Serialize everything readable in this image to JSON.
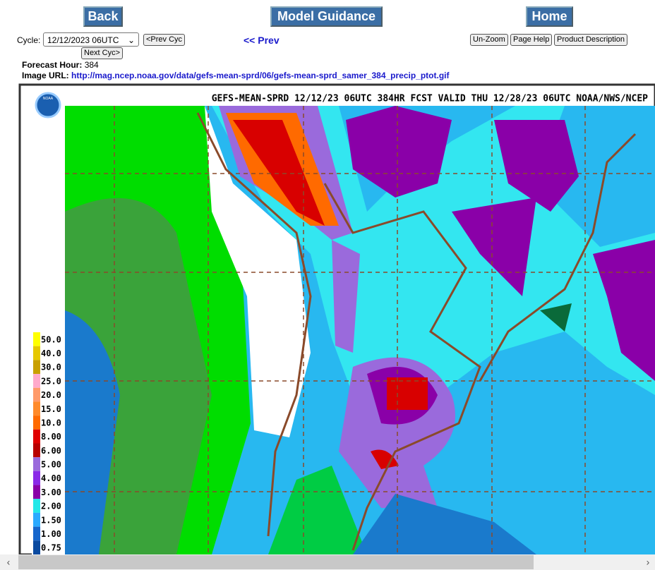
{
  "nav": {
    "back": "Back",
    "title": "Model Guidance",
    "home": "Home"
  },
  "cycle": {
    "label": "Cycle:",
    "selected": "12/12/2023 06UTC",
    "prev": "<Prev Cyc",
    "next": "Next Cyc>"
  },
  "prev_link": "<< Prev",
  "tools": {
    "unzoom": "Un-Zoom",
    "help": "Page Help",
    "description": "Product Description"
  },
  "info": {
    "hour_label": "Forecast Hour:",
    "hour": "384",
    "url_label": "Image URL:",
    "url": "http://mag.ncep.noaa.gov/data/gefs-mean-sprd/06/gefs-mean-sprd_samer_384_precip_ptot.gif"
  },
  "map": {
    "title": "GEFS-MEAN-SPRD 12/12/23 06UTC 384HR FCST VALID THU 12/28/23 06UTC NOAA/NWS/NCEP",
    "logo": "NOAA",
    "legend": [
      {
        "label": "50.0",
        "color": "#ffff00"
      },
      {
        "label": "40.0",
        "color": "#e6c800"
      },
      {
        "label": "30.0",
        "color": "#c8a000"
      },
      {
        "label": "25.0",
        "color": "#ffaacc"
      },
      {
        "label": "20.0",
        "color": "#ff9a6a"
      },
      {
        "label": "15.0",
        "color": "#ff8a2a"
      },
      {
        "label": "10.0",
        "color": "#ff6a00"
      },
      {
        "label": "8.00",
        "color": "#e00000"
      },
      {
        "label": "6.00",
        "color": "#b80000"
      },
      {
        "label": "5.00",
        "color": "#9a6adc"
      },
      {
        "label": "4.00",
        "color": "#8a2ae8"
      },
      {
        "label": "3.00",
        "color": "#8a00a8"
      },
      {
        "label": "2.00",
        "color": "#22e8e8"
      },
      {
        "label": "1.50",
        "color": "#2aaaff"
      },
      {
        "label": "1.00",
        "color": "#1666cc"
      },
      {
        "label": "0.75",
        "color": "#0a4aa0"
      }
    ]
  }
}
